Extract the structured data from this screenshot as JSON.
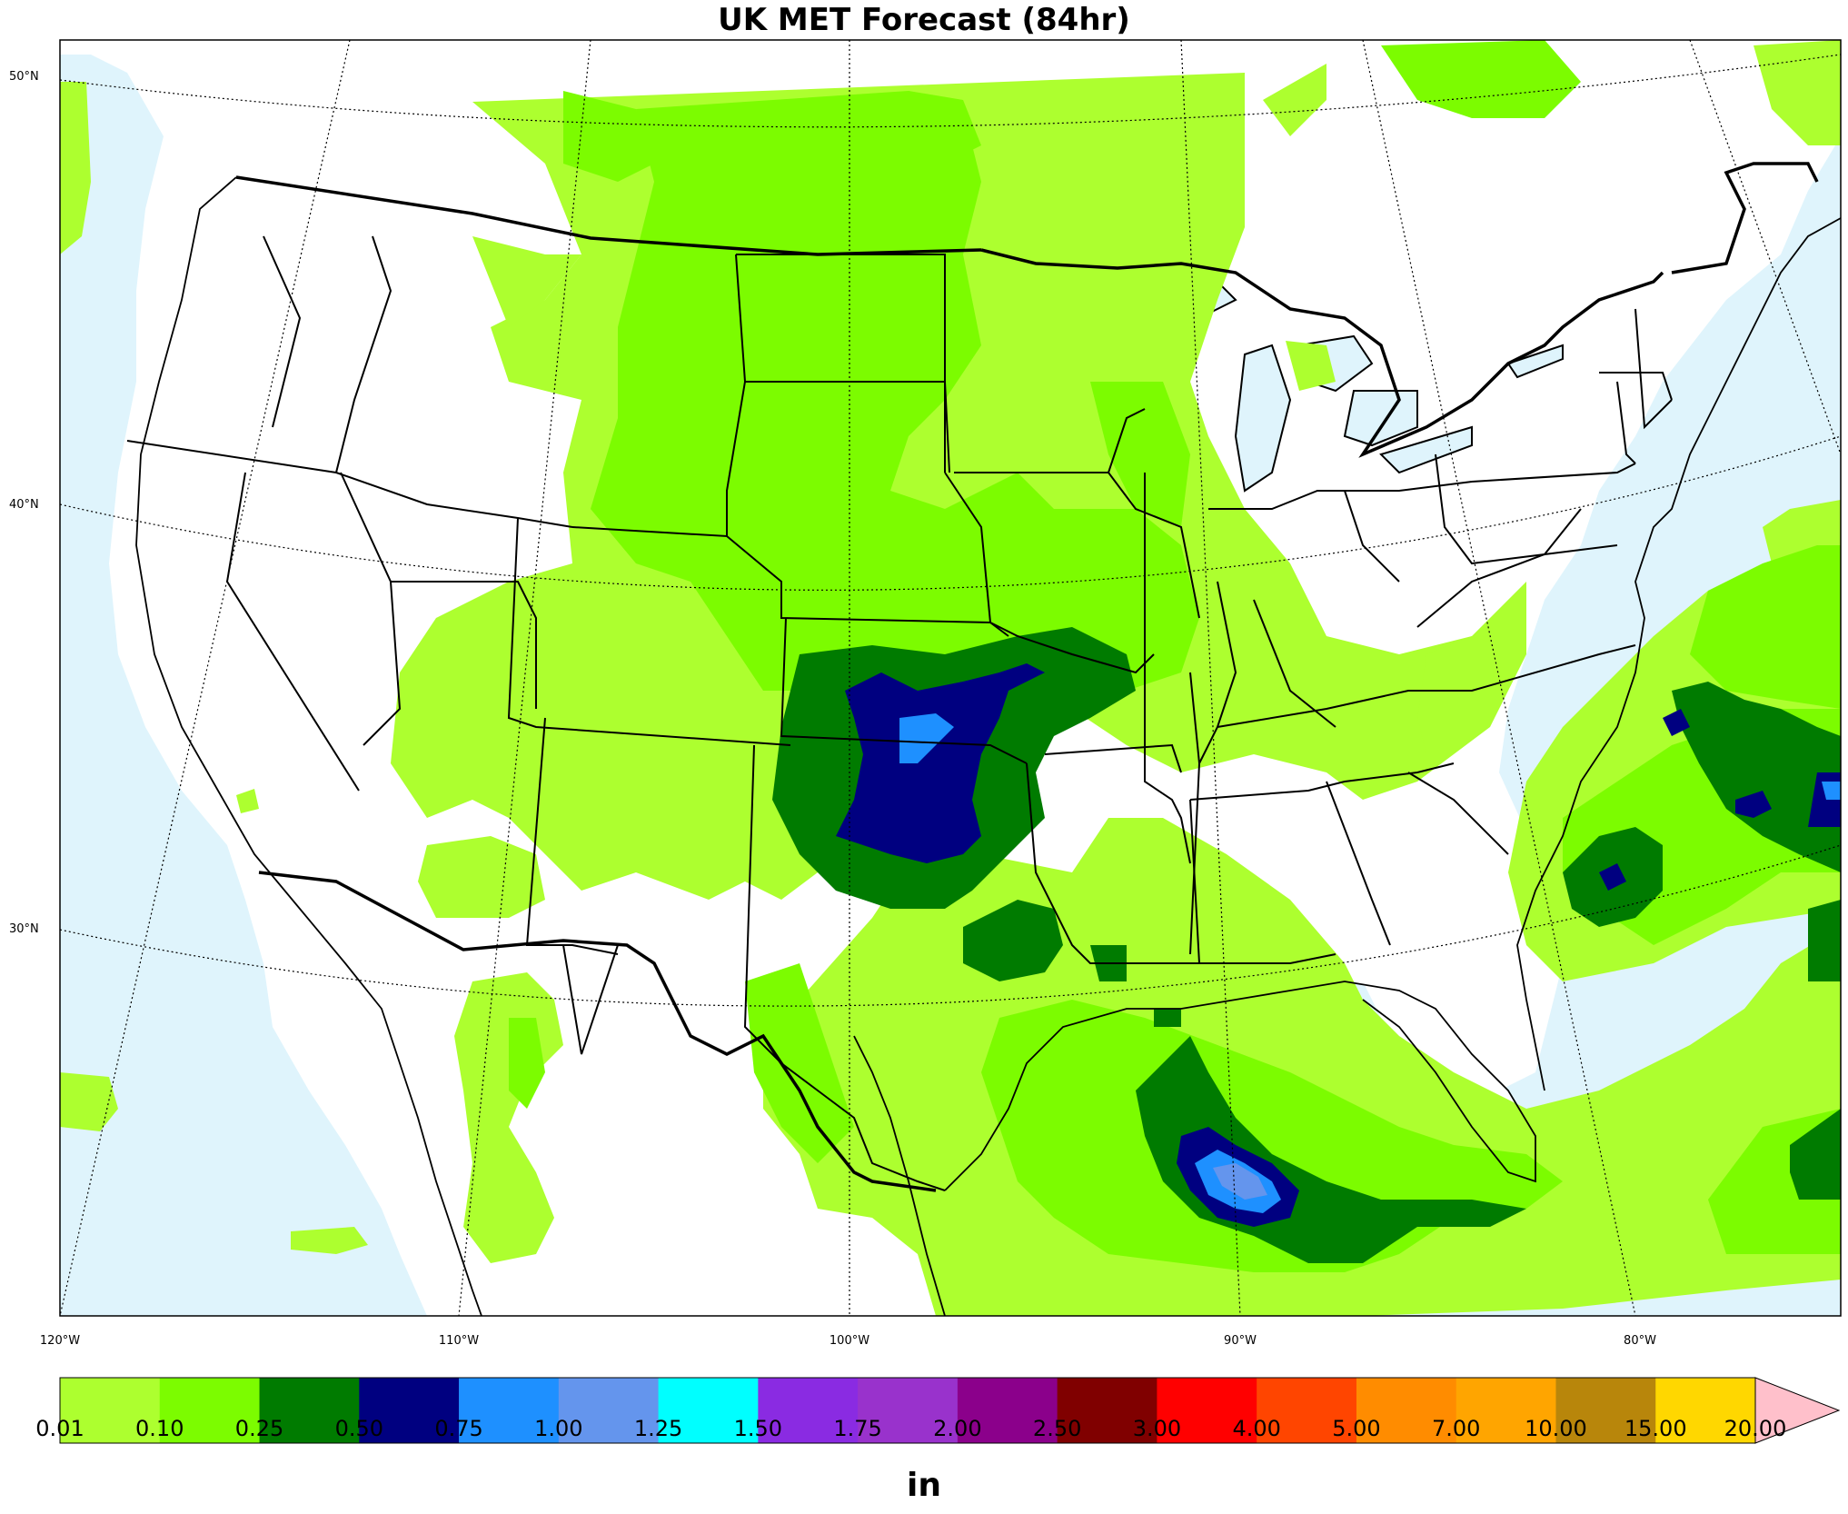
{
  "title": "UK MET Forecast (84hr)",
  "lat_labels": [
    "50°N",
    "40°N",
    "30°N"
  ],
  "lon_labels": [
    "120°W",
    "110°W",
    "100°W",
    "90°W",
    "80°W"
  ],
  "colorbar": {
    "units": "in",
    "ticks": [
      "0.01",
      "0.10",
      "0.25",
      "0.50",
      "0.75",
      "1.00",
      "1.25",
      "1.50",
      "1.75",
      "2.00",
      "2.50",
      "3.00",
      "4.00",
      "5.00",
      "7.00",
      "10.00",
      "15.00",
      "20.00"
    ],
    "colors": [
      "#adff2f",
      "#7cfc00",
      "#007b00",
      "#000080",
      "#1e90ff",
      "#6495ed",
      "#00ffff",
      "#8a2be2",
      "#9932cc",
      "#8b008b",
      "#800000",
      "#ff0000",
      "#ff4500",
      "#ff8c00",
      "#ffa500",
      "#b8860b",
      "#ffd700",
      "#ffff00"
    ],
    "extend_color": "#ffc0cb"
  },
  "colors": {
    "ocean": "#dff4fc",
    "land": "#ffffff"
  }
}
